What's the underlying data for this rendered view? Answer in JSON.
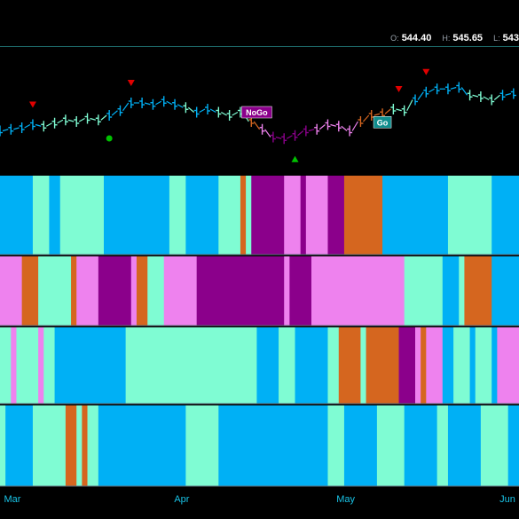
{
  "ohlc_readout": {
    "open_label": "O:",
    "open": "544.40",
    "high_label": "H:",
    "high": "545.65",
    "low_label": "L:",
    "low": "543"
  },
  "colors": {
    "strong_go": "#00b0f5",
    "weak_go": "#7ffcd3",
    "weak_nogo": "#ee82ee",
    "strong_nogo": "#8b008b",
    "go_fading": "#d5661f",
    "up_marker": "#00c000",
    "down_marker": "#e00000",
    "label_go": "#0f8d8d",
    "label_nogo": "#8b008b"
  },
  "chart_data": {
    "type": "heatmap",
    "title": "",
    "x_axis": {
      "labels": [
        "Mar",
        "Apr",
        "May",
        "Jun"
      ],
      "label_days": [
        0,
        31,
        61,
        92
      ]
    },
    "y_range": [
      0,
      100
    ],
    "price_series": [
      {
        "day": 0,
        "close": 40,
        "state": "strong_go"
      },
      {
        "day": 2,
        "close": 41,
        "state": "strong_go"
      },
      {
        "day": 4,
        "close": 42,
        "state": "strong_go"
      },
      {
        "day": 6,
        "close": 44,
        "state": "strong_go"
      },
      {
        "day": 8,
        "close": 43,
        "state": "weak_go"
      },
      {
        "day": 10,
        "close": 45,
        "state": "weak_go"
      },
      {
        "day": 12,
        "close": 47,
        "state": "weak_go"
      },
      {
        "day": 14,
        "close": 46,
        "state": "weak_go"
      },
      {
        "day": 16,
        "close": 48,
        "state": "weak_go"
      },
      {
        "day": 18,
        "close": 47,
        "state": "weak_go"
      },
      {
        "day": 20,
        "close": 50,
        "state": "strong_go"
      },
      {
        "day": 22,
        "close": 53,
        "state": "strong_go"
      },
      {
        "day": 24,
        "close": 58,
        "state": "strong_go"
      },
      {
        "day": 26,
        "close": 58,
        "state": "strong_go"
      },
      {
        "day": 28,
        "close": 57,
        "state": "strong_go"
      },
      {
        "day": 30,
        "close": 59,
        "state": "strong_go"
      },
      {
        "day": 32,
        "close": 57,
        "state": "strong_go"
      },
      {
        "day": 34,
        "close": 55,
        "state": "weak_go"
      },
      {
        "day": 36,
        "close": 52,
        "state": "strong_go"
      },
      {
        "day": 38,
        "close": 54,
        "state": "strong_go"
      },
      {
        "day": 40,
        "close": 52,
        "state": "weak_go"
      },
      {
        "day": 42,
        "close": 50,
        "state": "weak_go"
      },
      {
        "day": 44,
        "close": 52,
        "state": "weak_go"
      },
      {
        "day": 46,
        "close": 46,
        "state": "go_fading"
      },
      {
        "day": 48,
        "close": 41,
        "state": "weak_nogo"
      },
      {
        "day": 50,
        "close": 36,
        "state": "strong_nogo"
      },
      {
        "day": 52,
        "close": 35,
        "state": "strong_nogo"
      },
      {
        "day": 54,
        "close": 37,
        "state": "strong_nogo"
      },
      {
        "day": 56,
        "close": 40,
        "state": "strong_nogo"
      },
      {
        "day": 58,
        "close": 41,
        "state": "weak_nogo"
      },
      {
        "day": 60,
        "close": 44,
        "state": "weak_nogo"
      },
      {
        "day": 62,
        "close": 43,
        "state": "weak_nogo"
      },
      {
        "day": 64,
        "close": 40,
        "state": "weak_nogo"
      },
      {
        "day": 66,
        "close": 46,
        "state": "go_fading"
      },
      {
        "day": 68,
        "close": 50,
        "state": "go_fading"
      },
      {
        "day": 70,
        "close": 51,
        "state": "go_fading"
      },
      {
        "day": 72,
        "close": 54,
        "state": "weak_go"
      },
      {
        "day": 74,
        "close": 53,
        "state": "weak_go"
      },
      {
        "day": 76,
        "close": 60,
        "state": "strong_go"
      },
      {
        "day": 78,
        "close": 65,
        "state": "strong_go"
      },
      {
        "day": 80,
        "close": 67,
        "state": "strong_go"
      },
      {
        "day": 82,
        "close": 67,
        "state": "strong_go"
      },
      {
        "day": 84,
        "close": 68,
        "state": "strong_go"
      },
      {
        "day": 86,
        "close": 63,
        "state": "weak_go"
      },
      {
        "day": 88,
        "close": 62,
        "state": "weak_go"
      },
      {
        "day": 90,
        "close": 60,
        "state": "weak_go"
      },
      {
        "day": 92,
        "close": 63,
        "state": "strong_go"
      },
      {
        "day": 94,
        "close": 64,
        "state": "strong_go"
      }
    ],
    "markers": [
      {
        "type": "down",
        "day": 6
      },
      {
        "type": "down",
        "day": 24
      },
      {
        "type": "down",
        "day": 73
      },
      {
        "type": "down",
        "day": 78
      },
      {
        "type": "up",
        "day": 54
      },
      {
        "type": "dot",
        "day": 20
      }
    ],
    "labels": [
      {
        "text": "NoGo",
        "day": 47,
        "kind": "nogo"
      },
      {
        "text": "Go",
        "day": 70,
        "kind": "go"
      }
    ],
    "heat_rows": [
      [
        [
          "strong_go",
          0,
          6
        ],
        [
          "weak_go",
          6,
          9
        ],
        [
          "strong_go",
          9,
          11
        ],
        [
          "weak_go",
          11,
          19
        ],
        [
          "strong_go",
          19,
          31
        ],
        [
          "weak_go",
          31,
          34
        ],
        [
          "strong_go",
          34,
          40
        ],
        [
          "weak_go",
          40,
          44
        ],
        [
          "go_fading",
          44,
          45
        ],
        [
          "weak_go",
          45,
          46
        ],
        [
          "strong_nogo",
          46,
          52
        ],
        [
          "weak_nogo",
          52,
          55
        ],
        [
          "strong_nogo",
          55,
          56
        ],
        [
          "weak_nogo",
          56,
          60
        ],
        [
          "strong_nogo",
          60,
          63
        ],
        [
          "go_fading",
          63,
          70
        ],
        [
          "strong_go",
          70,
          82
        ],
        [
          "weak_go",
          82,
          90
        ],
        [
          "strong_go",
          90,
          95
        ]
      ],
      [
        [
          "weak_nogo",
          0,
          4
        ],
        [
          "go_fading",
          4,
          7
        ],
        [
          "weak_go",
          7,
          13
        ],
        [
          "go_fading",
          13,
          14
        ],
        [
          "weak_nogo",
          14,
          18
        ],
        [
          "strong_nogo",
          18,
          24
        ],
        [
          "weak_nogo",
          24,
          25
        ],
        [
          "go_fading",
          25,
          27
        ],
        [
          "weak_go",
          27,
          30
        ],
        [
          "weak_nogo",
          30,
          36
        ],
        [
          "strong_nogo",
          36,
          52
        ],
        [
          "weak_nogo",
          52,
          53
        ],
        [
          "strong_nogo",
          53,
          57
        ],
        [
          "weak_nogo",
          57,
          74
        ],
        [
          "weak_go",
          74,
          81
        ],
        [
          "strong_go",
          81,
          84
        ],
        [
          "weak_go",
          84,
          85
        ],
        [
          "go_fading",
          85,
          90
        ],
        [
          "strong_go",
          90,
          95
        ]
      ],
      [
        [
          "weak_go",
          0,
          2
        ],
        [
          "weak_nogo",
          2,
          3
        ],
        [
          "weak_go",
          3,
          7
        ],
        [
          "weak_nogo",
          7,
          8
        ],
        [
          "weak_go",
          8,
          10
        ],
        [
          "strong_go",
          10,
          23
        ],
        [
          "weak_go",
          23,
          47
        ],
        [
          "strong_go",
          47,
          51
        ],
        [
          "weak_go",
          51,
          54
        ],
        [
          "strong_go",
          54,
          60
        ],
        [
          "weak_go",
          60,
          62
        ],
        [
          "go_fading",
          62,
          66
        ],
        [
          "weak_go",
          66,
          67
        ],
        [
          "go_fading",
          67,
          73
        ],
        [
          "strong_nogo",
          73,
          76
        ],
        [
          "weak_nogo",
          76,
          77
        ],
        [
          "go_fading",
          77,
          78
        ],
        [
          "weak_nogo",
          78,
          81
        ],
        [
          "strong_go",
          81,
          83
        ],
        [
          "weak_go",
          83,
          86
        ],
        [
          "strong_go",
          86,
          87
        ],
        [
          "weak_go",
          87,
          90
        ],
        [
          "strong_go",
          90,
          91
        ],
        [
          "weak_nogo",
          91,
          95
        ]
      ],
      [
        [
          "weak_go",
          0,
          1
        ],
        [
          "strong_go",
          1,
          6
        ],
        [
          "weak_go",
          6,
          12
        ],
        [
          "go_fading",
          12,
          14
        ],
        [
          "weak_go",
          14,
          15
        ],
        [
          "go_fading",
          15,
          16
        ],
        [
          "weak_go",
          16,
          18
        ],
        [
          "strong_go",
          18,
          34
        ],
        [
          "weak_go",
          34,
          40
        ],
        [
          "strong_go",
          40,
          60
        ],
        [
          "weak_go",
          60,
          63
        ],
        [
          "strong_go",
          63,
          69
        ],
        [
          "weak_go",
          69,
          74
        ],
        [
          "strong_go",
          74,
          80
        ],
        [
          "weak_go",
          80,
          82
        ],
        [
          "strong_go",
          82,
          88
        ],
        [
          "weak_go",
          88,
          93
        ],
        [
          "strong_go",
          93,
          95
        ]
      ]
    ]
  }
}
